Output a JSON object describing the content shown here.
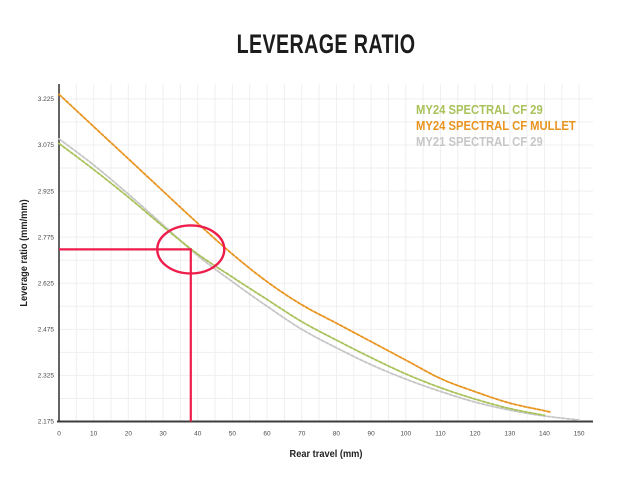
{
  "title": "LEVERAGE RATIO",
  "colors": {
    "background": "#ffffff",
    "title": "#1c1c1c",
    "axis": "#3c3c3c",
    "grid": "#efefef",
    "tick_labels": "#4a4a4a",
    "green": "#a9c25b",
    "orange": "#e8941f",
    "gray": "#c6c6c6",
    "annotation_red": "#ee1d4c"
  },
  "legend": {
    "items": [
      {
        "label": "MY24 SPECTRAL CF 29",
        "color": "#a9c25b"
      },
      {
        "label": "MY24 SPECTRAL CF MULLET",
        "color": "#e8941f"
      },
      {
        "label": "MY21 SPECTRAL CF 29",
        "color": "#c6c6c6"
      }
    ]
  },
  "chart_data": {
    "type": "line",
    "title": "LEVERAGE RATIO",
    "xlabel": "Rear travel (mm)",
    "ylabel": "Leverage ratio (mm/mm)",
    "xlim": [
      0,
      154
    ],
    "ylim": [
      2.175,
      3.2735
    ],
    "x_ticks": [
      0,
      10,
      20,
      30,
      40,
      50,
      60,
      70,
      80,
      90,
      100,
      110,
      120,
      130,
      140,
      150
    ],
    "y_ticks": [
      3.225,
      3.075,
      2.925,
      2.775,
      2.625,
      2.475,
      2.325,
      2.175
    ],
    "grid": {
      "on": true,
      "x_step_mm": 5,
      "y_step": 0.075
    },
    "legend_position": "top-right",
    "line_style": "dashed",
    "series": [
      {
        "name": "MY21 SPECTRAL CF 29",
        "color": "#c6c6c6",
        "x": [
          0,
          10,
          20,
          30,
          40,
          50,
          60,
          70,
          80,
          90,
          100,
          110,
          120,
          130,
          140,
          150
        ],
        "values": [
          3.095,
          3.01,
          2.915,
          2.815,
          2.715,
          2.63,
          2.55,
          2.475,
          2.415,
          2.36,
          2.313,
          2.273,
          2.238,
          2.212,
          2.193,
          2.18
        ]
      },
      {
        "name": "MY24 SPECTRAL CF 29",
        "color": "#a9c25b",
        "x": [
          0,
          10,
          20,
          30,
          40,
          50,
          60,
          70,
          80,
          90,
          100,
          110,
          120,
          130,
          140
        ],
        "values": [
          3.08,
          2.995,
          2.905,
          2.81,
          2.72,
          2.645,
          2.572,
          2.5,
          2.44,
          2.383,
          2.33,
          2.285,
          2.248,
          2.217,
          2.195
        ]
      },
      {
        "name": "MY24 SPECTRAL CF MULLET",
        "color": "#e8941f",
        "x": [
          0,
          10,
          20,
          30,
          40,
          50,
          60,
          70,
          80,
          90,
          100,
          110,
          120,
          130,
          140,
          142
        ],
        "values": [
          3.24,
          3.135,
          3.03,
          2.925,
          2.82,
          2.72,
          2.63,
          2.555,
          2.495,
          2.435,
          2.375,
          2.315,
          2.272,
          2.235,
          2.21,
          2.205
        ]
      }
    ],
    "annotation": {
      "shape": "crosshair-with-ellipse",
      "x": 38,
      "y": 2.735,
      "color": "#ee1d4c"
    }
  }
}
